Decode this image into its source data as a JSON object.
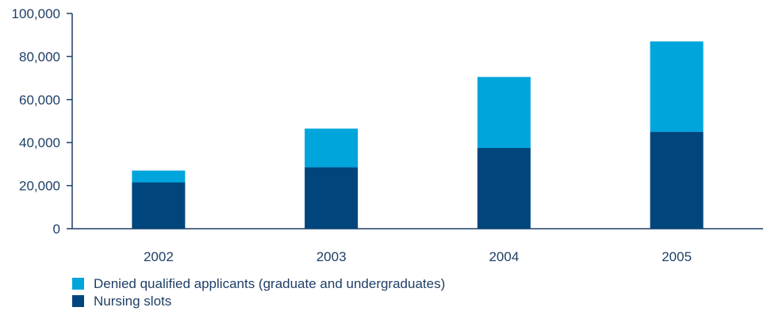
{
  "chart_data": {
    "type": "bar",
    "stacked": true,
    "categories": [
      "2002",
      "2003",
      "2004",
      "2005"
    ],
    "series": [
      {
        "name": "Nursing slots",
        "values": [
          21500,
          28500,
          37500,
          45000
        ],
        "color": "#00457c"
      },
      {
        "name": "Denied qualified applicants (graduate and undergraduates)",
        "values": [
          5500,
          18000,
          33000,
          42000
        ],
        "color": "#00a5db"
      }
    ],
    "ylim": [
      0,
      100000
    ],
    "yticks": [
      "0",
      "20,000",
      "40,000",
      "60,000",
      "80,000",
      "100,000"
    ],
    "ytick_values": [
      0,
      20000,
      40000,
      60000,
      80000,
      100000
    ],
    "legend": [
      {
        "label": "Denied qualified applicants (graduate and undergraduates)",
        "color": "#00a5db"
      },
      {
        "label": "Nursing slots",
        "color": "#00457c"
      }
    ],
    "legend_position": "bottom-left",
    "grid": false,
    "axis_color": "#1f3f66"
  }
}
